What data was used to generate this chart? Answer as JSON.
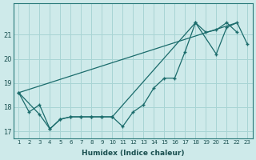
{
  "xlabel": "Humidex (Indice chaleur)",
  "bg_color": "#ceeaea",
  "grid_color": "#a8d4d4",
  "line_color": "#1a6b6b",
  "ylim": [
    16.7,
    22.3
  ],
  "xlim": [
    0.5,
    23.5
  ],
  "yticks": [
    17,
    18,
    19,
    20,
    21
  ],
  "xticks": [
    1,
    2,
    3,
    4,
    5,
    6,
    7,
    8,
    9,
    10,
    11,
    12,
    13,
    14,
    15,
    16,
    17,
    18,
    19,
    20,
    21,
    22,
    23
  ],
  "line1_x": [
    1,
    2,
    3,
    4,
    5,
    6,
    7,
    8,
    9,
    10,
    11,
    12,
    13,
    14,
    15,
    16,
    17,
    18,
    19,
    20,
    21,
    22
  ],
  "line1_y": [
    18.6,
    17.8,
    18.1,
    17.1,
    17.5,
    17.6,
    17.6,
    17.6,
    17.6,
    17.6,
    17.2,
    17.8,
    18.1,
    18.8,
    19.2,
    19.2,
    20.3,
    21.5,
    21.1,
    21.2,
    21.5,
    21.1
  ],
  "line2_x": [
    1,
    22
  ],
  "line2_y": [
    18.6,
    21.5
  ],
  "line3_x": [
    1,
    3,
    4,
    5,
    6,
    7,
    8,
    9,
    10,
    18,
    20,
    21,
    22,
    23
  ],
  "line3_y": [
    18.6,
    17.7,
    17.1,
    17.5,
    17.6,
    17.6,
    17.6,
    17.6,
    17.6,
    21.5,
    20.2,
    21.3,
    21.5,
    20.6
  ]
}
